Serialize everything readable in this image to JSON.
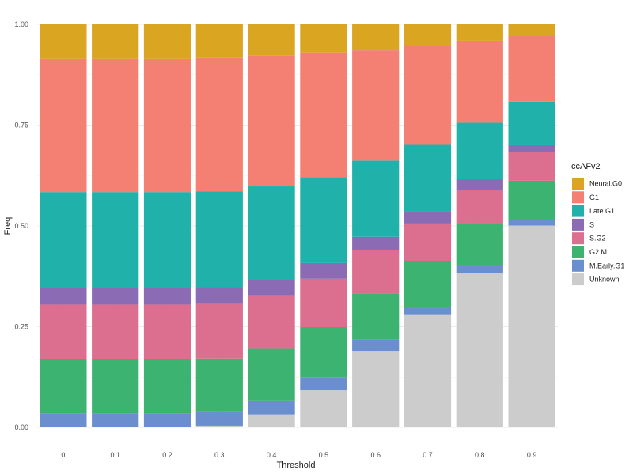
{
  "chart_data": {
    "type": "bar",
    "stacked": true,
    "title": "",
    "xlabel": "Threshold",
    "ylabel": "Freq",
    "ylim": [
      0,
      1
    ],
    "y_ticks": [
      "0.00",
      "0.25",
      "0.50",
      "0.75",
      "1.00"
    ],
    "grid": true,
    "legend_title": "ccAFv2",
    "legend_position": "right",
    "categories": [
      "0",
      "0.1",
      "0.2",
      "0.3",
      "0.4",
      "0.5",
      "0.6",
      "0.7",
      "0.8",
      "0.9"
    ],
    "series": [
      {
        "name": "Unknown",
        "color": "#cccccc",
        "values": [
          0.0,
          0.0,
          0.0,
          0.004,
          0.032,
          0.092,
          0.19,
          0.279,
          0.383,
          0.501
        ]
      },
      {
        "name": "M.Early.G1",
        "color": "#6b8ecf",
        "values": [
          0.035,
          0.035,
          0.035,
          0.037,
          0.035,
          0.033,
          0.028,
          0.021,
          0.019,
          0.013
        ]
      },
      {
        "name": "G2.M",
        "color": "#3cb371",
        "values": [
          0.135,
          0.135,
          0.135,
          0.13,
          0.128,
          0.124,
          0.115,
          0.112,
          0.105,
          0.098
        ]
      },
      {
        "name": "S.G2",
        "color": "#dc6e8f",
        "values": [
          0.135,
          0.135,
          0.135,
          0.136,
          0.131,
          0.12,
          0.107,
          0.094,
          0.083,
          0.072
        ]
      },
      {
        "name": "S",
        "color": "#8b6bb4",
        "values": [
          0.041,
          0.041,
          0.041,
          0.041,
          0.04,
          0.039,
          0.033,
          0.031,
          0.027,
          0.018
        ]
      },
      {
        "name": "Late.G1",
        "color": "#20b2aa",
        "values": [
          0.238,
          0.238,
          0.238,
          0.238,
          0.232,
          0.213,
          0.189,
          0.166,
          0.139,
          0.106
        ]
      },
      {
        "name": "G1",
        "color": "#f38072",
        "values": [
          0.33,
          0.33,
          0.33,
          0.332,
          0.325,
          0.309,
          0.275,
          0.245,
          0.203,
          0.163
        ]
      },
      {
        "name": "Neural.G0",
        "color": "#daa520",
        "values": [
          0.086,
          0.086,
          0.086,
          0.082,
          0.077,
          0.07,
          0.063,
          0.052,
          0.041,
          0.029
        ]
      }
    ],
    "legend_order": [
      "Neural.G0",
      "G1",
      "Late.G1",
      "S",
      "S.G2",
      "G2.M",
      "M.Early.G1",
      "Unknown"
    ]
  }
}
